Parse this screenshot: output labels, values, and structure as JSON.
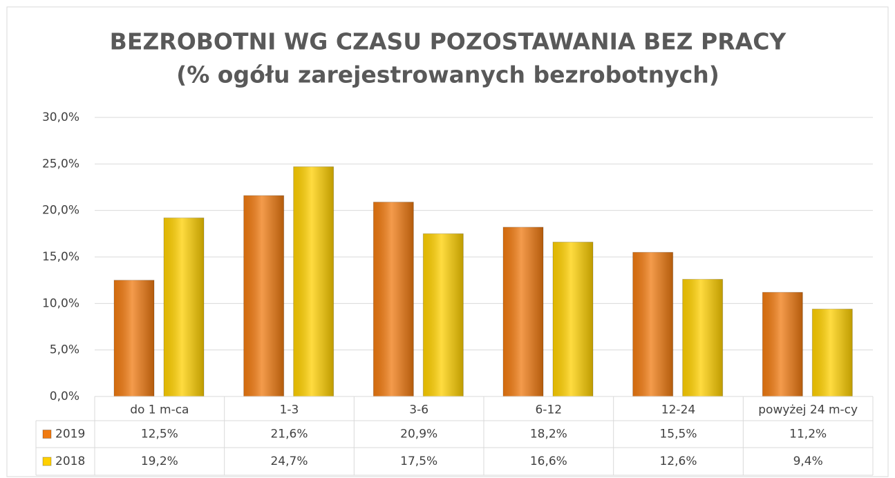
{
  "chart_data": {
    "type": "bar",
    "title": "BEZROBOTNI WG CZASU POZOSTAWANIA BEZ PRACY",
    "subtitle": "(% ogółu zarejestrowanych bezrobotnych)",
    "categories": [
      "do 1 m-ca",
      "1-3",
      "3-6",
      "6-12",
      "12-24",
      "powyżej 24 m-cy"
    ],
    "series": [
      {
        "name": "2019",
        "color": "#f07a10",
        "values": [
          12.5,
          21.6,
          20.9,
          18.2,
          15.5,
          11.2
        ],
        "value_labels": [
          "12,5%",
          "21,6%",
          "20,9%",
          "18,2%",
          "15,5%",
          "11,2%"
        ]
      },
      {
        "name": "2018",
        "color": "#ffd000",
        "values": [
          19.2,
          24.7,
          17.5,
          16.6,
          12.6,
          9.4
        ],
        "value_labels": [
          "19,2%",
          "24,7%",
          "17,5%",
          "16,6%",
          "12,6%",
          "9,4%"
        ]
      }
    ],
    "ylim": [
      0,
      30
    ],
    "yticks": [
      {
        "value": 0,
        "label": "0,0%"
      },
      {
        "value": 5,
        "label": "5,0%"
      },
      {
        "value": 10,
        "label": "10,0%"
      },
      {
        "value": 15,
        "label": "15,0%"
      },
      {
        "value": 20,
        "label": "20,0%"
      },
      {
        "value": 25,
        "label": "25,0%"
      },
      {
        "value": 30,
        "label": "30,0%"
      }
    ],
    "grid": true
  }
}
